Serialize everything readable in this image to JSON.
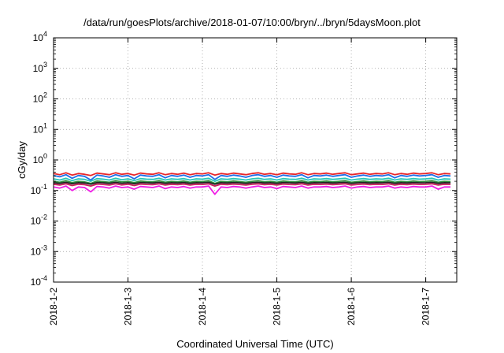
{
  "chart_data": {
    "type": "line",
    "title": "/data/run/goesPlots/archive/2018-01-07/10:00/bryn/../bryn/5daysMoon.plot",
    "xlabel": "Coordinated Universal Time (UTC)",
    "ylabel": "cGy/day",
    "yscale": "log",
    "ylim": [
      0.0001,
      10000
    ],
    "xlim": [
      "2018-01-02T00:00",
      "2018-01-07T10:00"
    ],
    "yticks": [
      {
        "value": 0.0001,
        "base": "10",
        "exp": "-4"
      },
      {
        "value": 0.001,
        "base": "10",
        "exp": "-3"
      },
      {
        "value": 0.01,
        "base": "10",
        "exp": "-2"
      },
      {
        "value": 0.1,
        "base": "10",
        "exp": "-1"
      },
      {
        "value": 1,
        "base": "10",
        "exp": "0"
      },
      {
        "value": 10,
        "base": "10",
        "exp": "1"
      },
      {
        "value": 100,
        "base": "10",
        "exp": "2"
      },
      {
        "value": 1000,
        "base": "10",
        "exp": "3"
      },
      {
        "value": 10000,
        "base": "10",
        "exp": "4"
      }
    ],
    "xticks": [
      {
        "value": "2018-01-02T00:00",
        "label": "2018-1-2"
      },
      {
        "value": "2018-01-03T00:00",
        "label": "2018-1-3"
      },
      {
        "value": "2018-01-04T00:00",
        "label": "2018-1-4"
      },
      {
        "value": "2018-01-05T00:00",
        "label": "2018-1-5"
      },
      {
        "value": "2018-01-06T00:00",
        "label": "2018-1-6"
      },
      {
        "value": "2018-01-07T00:00",
        "label": "2018-1-7"
      }
    ],
    "grid": true,
    "legend": "none",
    "series_timestep_hours": 2,
    "series": [
      {
        "color": "#e8262a",
        "values": [
          0.36,
          0.33,
          0.38,
          0.32,
          0.36,
          0.34,
          0.31,
          0.37,
          0.35,
          0.33,
          0.38,
          0.34,
          0.36,
          0.32,
          0.37,
          0.35,
          0.34,
          0.38,
          0.33,
          0.36,
          0.34,
          0.37,
          0.33,
          0.36,
          0.35,
          0.38,
          0.32,
          0.36,
          0.34,
          0.37,
          0.35,
          0.33,
          0.36,
          0.38,
          0.34,
          0.36,
          0.33,
          0.37,
          0.35,
          0.34,
          0.38,
          0.33,
          0.36,
          0.35,
          0.37,
          0.34,
          0.36,
          0.38,
          0.33,
          0.35,
          0.37,
          0.34,
          0.36,
          0.35,
          0.38,
          0.33,
          0.36,
          0.34,
          0.37,
          0.35,
          0.36,
          0.38,
          0.33,
          0.36,
          0.35
        ]
      },
      {
        "color": "#1f6fe8",
        "values": [
          0.31,
          0.28,
          0.33,
          0.25,
          0.31,
          0.29,
          0.22,
          0.32,
          0.3,
          0.27,
          0.33,
          0.29,
          0.31,
          0.24,
          0.32,
          0.3,
          0.29,
          0.33,
          0.26,
          0.31,
          0.29,
          0.32,
          0.27,
          0.31,
          0.3,
          0.33,
          0.23,
          0.31,
          0.29,
          0.32,
          0.3,
          0.27,
          0.31,
          0.33,
          0.29,
          0.31,
          0.27,
          0.32,
          0.3,
          0.29,
          0.33,
          0.26,
          0.31,
          0.3,
          0.32,
          0.29,
          0.31,
          0.33,
          0.27,
          0.3,
          0.32,
          0.29,
          0.31,
          0.3,
          0.33,
          0.26,
          0.31,
          0.29,
          0.32,
          0.3,
          0.31,
          0.33,
          0.27,
          0.31,
          0.3
        ]
      },
      {
        "color": "#29c7b8",
        "values": [
          0.24,
          0.22,
          0.25,
          0.21,
          0.24,
          0.23,
          0.2,
          0.245,
          0.235,
          0.22,
          0.25,
          0.225,
          0.24,
          0.21,
          0.245,
          0.235,
          0.23,
          0.25,
          0.22,
          0.24,
          0.23,
          0.245,
          0.22,
          0.24,
          0.235,
          0.25,
          0.2,
          0.24,
          0.23,
          0.245,
          0.235,
          0.22,
          0.24,
          0.25,
          0.23,
          0.24,
          0.22,
          0.245,
          0.235,
          0.23,
          0.25,
          0.22,
          0.24,
          0.235,
          0.245,
          0.23,
          0.24,
          0.25,
          0.22,
          0.235,
          0.245,
          0.23,
          0.24,
          0.235,
          0.25,
          0.22,
          0.24,
          0.23,
          0.245,
          0.235,
          0.24,
          0.25,
          0.22,
          0.24,
          0.235
        ]
      },
      {
        "color": "#2d8f3c",
        "values": [
          0.2,
          0.185,
          0.21,
          0.18,
          0.2,
          0.19,
          0.17,
          0.205,
          0.195,
          0.185,
          0.21,
          0.19,
          0.2,
          0.18,
          0.205,
          0.195,
          0.19,
          0.21,
          0.185,
          0.2,
          0.19,
          0.205,
          0.185,
          0.2,
          0.195,
          0.21,
          0.17,
          0.2,
          0.19,
          0.205,
          0.195,
          0.185,
          0.2,
          0.21,
          0.19,
          0.2,
          0.185,
          0.205,
          0.195,
          0.19,
          0.21,
          0.185,
          0.2,
          0.195,
          0.205,
          0.19,
          0.2,
          0.21,
          0.185,
          0.195,
          0.205,
          0.19,
          0.2,
          0.195,
          0.21,
          0.185,
          0.2,
          0.19,
          0.205,
          0.195,
          0.2,
          0.21,
          0.185,
          0.2,
          0.195
        ]
      },
      {
        "color": "#222222",
        "values": [
          0.18,
          0.17,
          0.185,
          0.165,
          0.18,
          0.175,
          0.16,
          0.182,
          0.178,
          0.17,
          0.185,
          0.172,
          0.18,
          0.165,
          0.182,
          0.178,
          0.175,
          0.185,
          0.17,
          0.18,
          0.175,
          0.182,
          0.17,
          0.18,
          0.178,
          0.185,
          0.16,
          0.18,
          0.175,
          0.182,
          0.178,
          0.17,
          0.18,
          0.185,
          0.175,
          0.18,
          0.17,
          0.182,
          0.178,
          0.175,
          0.185,
          0.17,
          0.18,
          0.178,
          0.182,
          0.175,
          0.18,
          0.185,
          0.17,
          0.178,
          0.182,
          0.175,
          0.18,
          0.178,
          0.185,
          0.17,
          0.18,
          0.175,
          0.182,
          0.178,
          0.18,
          0.185,
          0.17,
          0.18,
          0.178
        ]
      },
      {
        "color": "#c81e5a",
        "values": [
          0.16,
          0.15,
          0.165,
          0.145,
          0.16,
          0.155,
          0.14,
          0.162,
          0.158,
          0.15,
          0.165,
          0.152,
          0.16,
          0.145,
          0.162,
          0.158,
          0.155,
          0.165,
          0.15,
          0.16,
          0.155,
          0.162,
          0.15,
          0.16,
          0.158,
          0.165,
          0.14,
          0.16,
          0.155,
          0.162,
          0.158,
          0.15,
          0.16,
          0.165,
          0.155,
          0.16,
          0.15,
          0.162,
          0.158,
          0.155,
          0.165,
          0.15,
          0.16,
          0.158,
          0.162,
          0.155,
          0.16,
          0.165,
          0.15,
          0.158,
          0.162,
          0.155,
          0.16,
          0.158,
          0.165,
          0.15,
          0.16,
          0.155,
          0.162,
          0.158,
          0.16,
          0.165,
          0.15,
          0.16,
          0.158
        ]
      },
      {
        "color": "#f01ee6",
        "values": [
          0.13,
          0.12,
          0.14,
          0.1,
          0.13,
          0.125,
          0.09,
          0.135,
          0.13,
          0.12,
          0.14,
          0.125,
          0.13,
          0.11,
          0.135,
          0.13,
          0.125,
          0.14,
          0.115,
          0.13,
          0.125,
          0.135,
          0.12,
          0.13,
          0.13,
          0.14,
          0.075,
          0.13,
          0.125,
          0.135,
          0.13,
          0.12,
          0.13,
          0.14,
          0.125,
          0.13,
          0.115,
          0.135,
          0.13,
          0.125,
          0.14,
          0.12,
          0.13,
          0.13,
          0.135,
          0.125,
          0.13,
          0.14,
          0.12,
          0.13,
          0.135,
          0.125,
          0.13,
          0.13,
          0.14,
          0.12,
          0.13,
          0.125,
          0.135,
          0.13,
          0.13,
          0.14,
          0.11,
          0.13,
          0.13
        ]
      }
    ]
  }
}
